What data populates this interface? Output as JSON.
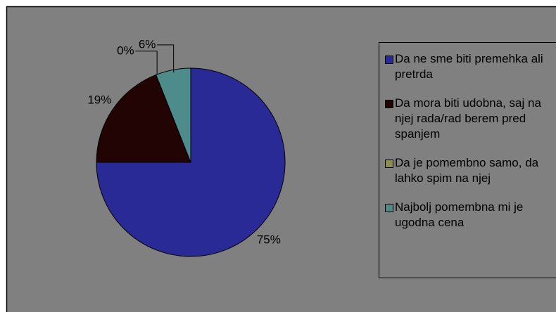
{
  "chart_data": {
    "type": "pie",
    "categories": [
      "Da ne sme biti premehka ali pretrda",
      "Da mora biti udobna, saj na njej rada/rad berem pred spanjem",
      "Da je pomembno samo, da lahko spim na njej",
      "Najbolj pomembna mi je ugodna cena"
    ],
    "values": [
      75,
      19,
      0,
      6
    ],
    "value_labels": [
      "75%",
      "19%",
      "0%",
      "6%"
    ],
    "colors": [
      "#2a2a96",
      "#220404",
      "#8c8c52",
      "#4e8c8c"
    ],
    "legend": "right"
  }
}
